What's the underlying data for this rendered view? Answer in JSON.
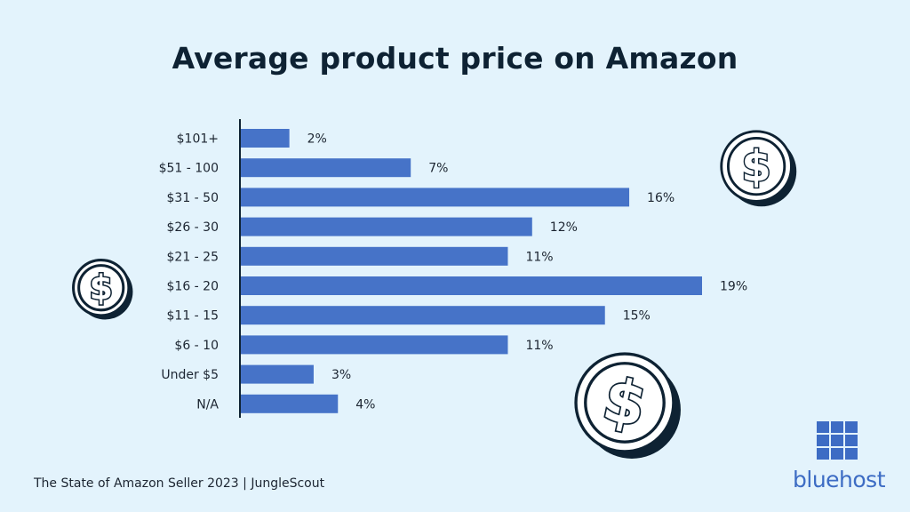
{
  "chart_data": {
    "type": "bar",
    "orientation": "horizontal",
    "title": "Average product price on Amazon",
    "categories": [
      "$101+",
      "$51 - 100",
      "$31 - 50",
      "$26 - 30",
      "$21 - 25",
      "$16 - 20",
      "$11 - 15",
      "$6 - 10",
      "Under $5",
      "N/A"
    ],
    "values": [
      2,
      7,
      16,
      12,
      11,
      19,
      15,
      11,
      3,
      4
    ],
    "value_labels": [
      "2%",
      "7%",
      "16%",
      "12%",
      "11%",
      "19%",
      "15%",
      "11%",
      "3%",
      "4%"
    ],
    "unit": "%",
    "xlim": [
      0,
      19
    ],
    "bar_color": "#4673c8",
    "grid": false,
    "legend": "none"
  },
  "source": "The State of Amazon Seller 2023 | JungleScout",
  "brand": {
    "name": "bluehost",
    "color": "#3d6cc4"
  },
  "decorations": {
    "icon": "dollar-coin-icon"
  }
}
